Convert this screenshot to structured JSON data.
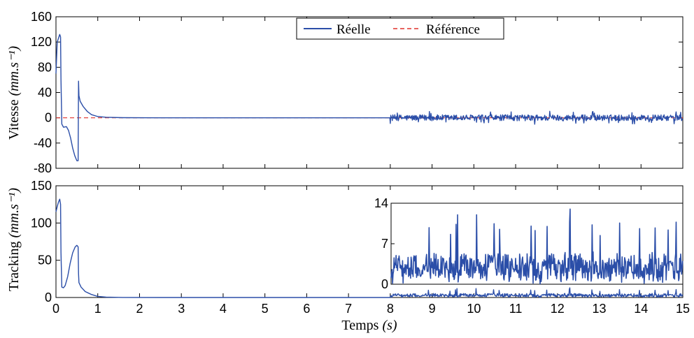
{
  "colors": {
    "reelle": "#2b4ea8",
    "reference": "#e0302a",
    "axes": "#000000",
    "background": "#ffffff"
  },
  "chart_data": [
    {
      "type": "line",
      "id": "vitesse",
      "xlim": [
        0,
        15
      ],
      "ylim": [
        -80,
        160
      ],
      "yticks": [
        "160",
        "120",
        "80",
        "40",
        "0",
        "-40",
        "-80"
      ],
      "ytick_values": [
        160,
        120,
        80,
        40,
        0,
        -40,
        -80
      ],
      "ylabel": "Vitesse",
      "ylabel_unit": "(mm.s⁻¹)",
      "grid": false,
      "legend": {
        "placement": "top-center",
        "entries": [
          "Réelle",
          "Référence"
        ]
      },
      "series": [
        {
          "name": "Réelle",
          "style": "solid",
          "color_key": "reelle",
          "points": [
            [
              0.0,
              70
            ],
            [
              0.03,
              120
            ],
            [
              0.06,
              126
            ],
            [
              0.09,
              132
            ],
            [
              0.11,
              128
            ],
            [
              0.12,
              60
            ],
            [
              0.14,
              -10
            ],
            [
              0.18,
              -15
            ],
            [
              0.25,
              -14
            ],
            [
              0.3,
              -20
            ],
            [
              0.35,
              -32
            ],
            [
              0.4,
              -48
            ],
            [
              0.45,
              -60
            ],
            [
              0.5,
              -68
            ],
            [
              0.53,
              -68
            ],
            [
              0.54,
              58
            ],
            [
              0.55,
              35
            ],
            [
              0.58,
              26
            ],
            [
              0.65,
              18
            ],
            [
              0.75,
              10
            ],
            [
              0.85,
              5
            ],
            [
              1.0,
              2
            ],
            [
              1.2,
              0.8
            ],
            [
              1.6,
              0.2
            ],
            [
              2.5,
              0
            ],
            [
              4,
              0
            ],
            [
              6,
              0
            ],
            [
              7.99,
              0
            ]
          ],
          "noise_segment": {
            "x_start": 8.0,
            "x_end": 15.0,
            "amplitude": 8,
            "peak": 12
          }
        },
        {
          "name": "Référence",
          "style": "dashed",
          "color_key": "reference",
          "points": [
            [
              0,
              0
            ],
            [
              15,
              0
            ]
          ]
        }
      ]
    },
    {
      "type": "line",
      "id": "tracking",
      "xlim": [
        0,
        15
      ],
      "ylim": [
        0,
        150
      ],
      "xticks": [
        "0",
        "1",
        "2",
        "3",
        "4",
        "5",
        "6",
        "7",
        "8",
        "9",
        "10",
        "11",
        "12",
        "13",
        "14",
        "15"
      ],
      "yticks": [
        "150",
        "100",
        "50",
        "0"
      ],
      "ytick_values": [
        150,
        100,
        50,
        0
      ],
      "ylabel": "Tracking",
      "ylabel_unit": "(mm.s⁻¹)",
      "xlabel": "Temps",
      "xlabel_unit": "(s)",
      "grid": false,
      "series": [
        {
          "color_key": "reelle",
          "style": "solid",
          "points": [
            [
              0.0,
              115
            ],
            [
              0.03,
              122
            ],
            [
              0.06,
              128
            ],
            [
              0.09,
              132
            ],
            [
              0.11,
              125
            ],
            [
              0.12,
              60
            ],
            [
              0.14,
              14
            ],
            [
              0.18,
              13
            ],
            [
              0.22,
              16
            ],
            [
              0.28,
              28
            ],
            [
              0.34,
              46
            ],
            [
              0.4,
              60
            ],
            [
              0.46,
              68
            ],
            [
              0.5,
              70
            ],
            [
              0.53,
              68
            ],
            [
              0.54,
              32
            ],
            [
              0.55,
              20
            ],
            [
              0.6,
              14
            ],
            [
              0.7,
              8
            ],
            [
              0.85,
              4
            ],
            [
              1.0,
              1.5
            ],
            [
              1.2,
              0.5
            ],
            [
              1.6,
              0.1
            ],
            [
              2.5,
              0
            ],
            [
              7.99,
              0
            ]
          ],
          "noise_segment": {
            "x_start": 8.0,
            "x_end": 15.0,
            "mean": 3,
            "max": 13
          }
        }
      ],
      "inset": {
        "xlim": [
          8,
          15
        ],
        "ylim": [
          0,
          14
        ],
        "yticks": [
          "14",
          "7",
          "0"
        ],
        "ytick_values": [
          14,
          7,
          0
        ],
        "peaks": [
          [
            9.6,
            12
          ],
          [
            10.05,
            12
          ],
          [
            12.3,
            13
          ],
          [
            10.6,
            9.5
          ],
          [
            11.75,
            10
          ]
        ]
      }
    }
  ]
}
